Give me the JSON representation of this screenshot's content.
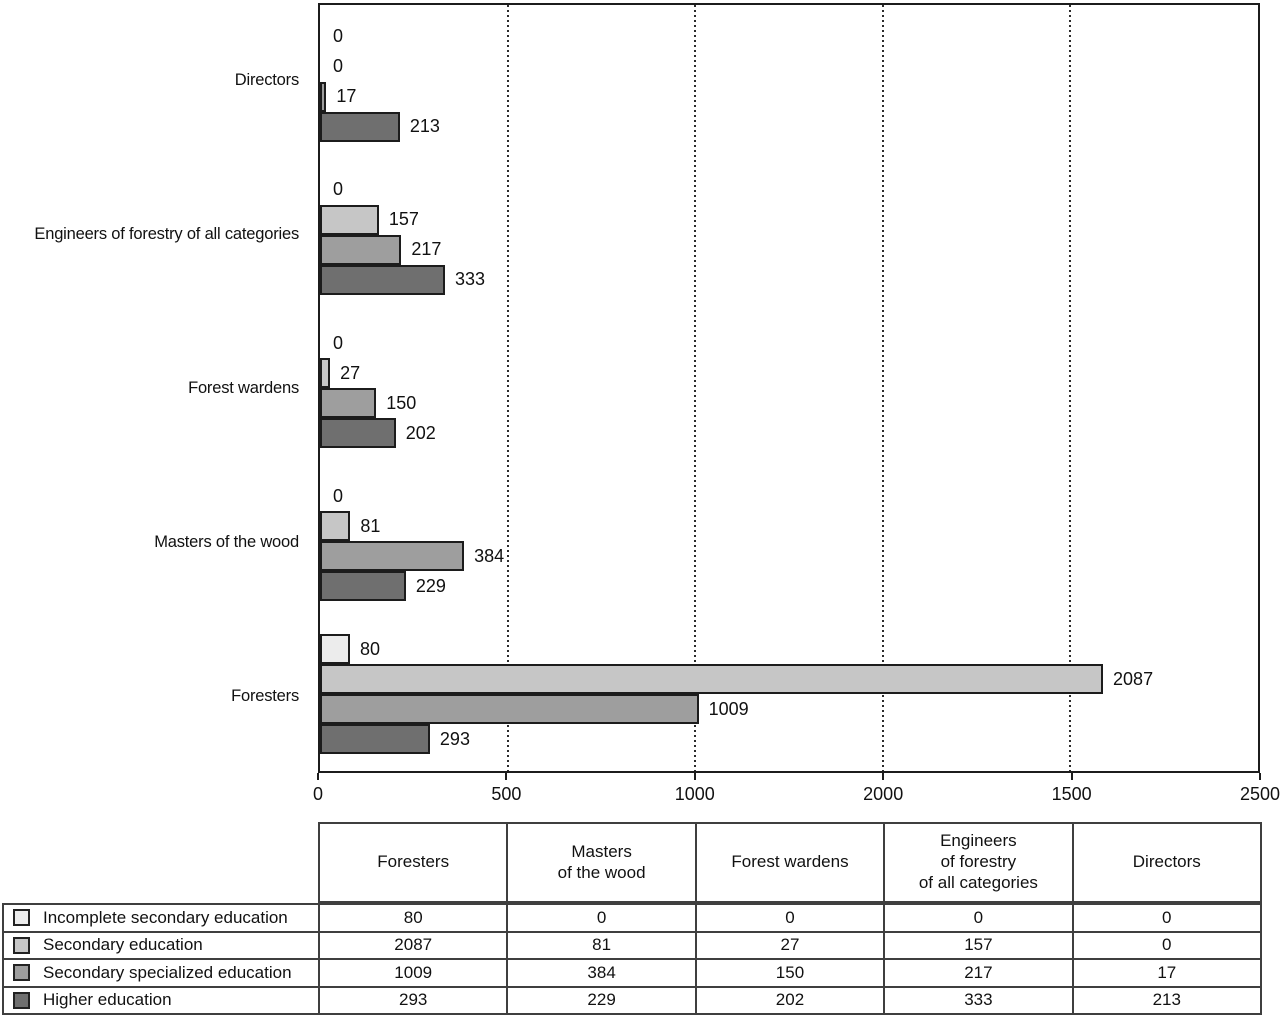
{
  "chart_data": {
    "type": "bar",
    "orientation": "horizontal",
    "title": "",
    "xlabel": "",
    "ylabel": "",
    "xlim": [
      0,
      2500
    ],
    "x_tick_labels": [
      "0",
      "500",
      "1000",
      "2000",
      "1500",
      "2500"
    ],
    "gridlines": "vertical dotted every 500 units",
    "legend_position": "table-below",
    "categories": [
      "Directors",
      "Engineers of forestry of all categories",
      "Forest wardens",
      "Masters of the wood",
      "Foresters"
    ],
    "series": [
      {
        "name": "Incomplete secondary education",
        "color": "#ececec",
        "values": [
          0,
          0,
          0,
          0,
          80
        ]
      },
      {
        "name": "Secondary education",
        "color": "#c6c6c6",
        "values": [
          0,
          157,
          27,
          81,
          2087
        ]
      },
      {
        "name": "Secondary specialized education",
        "color": "#9e9e9e",
        "values": [
          17,
          217,
          150,
          384,
          1009
        ]
      },
      {
        "name": "Higher education",
        "color": "#6f6f6f",
        "values": [
          213,
          333,
          202,
          229,
          293
        ]
      }
    ],
    "bar_border_color": "#1c1c1c"
  },
  "table": {
    "columns": [
      "Foresters",
      "Masters\nof the wood",
      "Forest wardens",
      "Engineers\nof forestry\nof all categories",
      "Directors"
    ],
    "rows": [
      {
        "label": "Incomplete secondary education",
        "swatch_color": "#ececec",
        "values": [
          80,
          0,
          0,
          0,
          0
        ]
      },
      {
        "label": "Secondary education",
        "swatch_color": "#c6c6c6",
        "values": [
          2087,
          81,
          27,
          157,
          0
        ]
      },
      {
        "label": "Secondary specialized education",
        "swatch_color": "#9e9e9e",
        "values": [
          1009,
          384,
          150,
          217,
          17
        ]
      },
      {
        "label": "Higher education",
        "swatch_color": "#6f6f6f",
        "values": [
          293,
          229,
          202,
          333,
          213
        ]
      }
    ]
  }
}
